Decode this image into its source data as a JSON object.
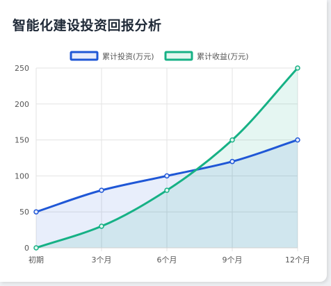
{
  "page": {
    "title": "智能化建设投资回报分析"
  },
  "chart_data": {
    "type": "line",
    "title": "智能化建设投资回报分析",
    "categories": [
      "初期",
      "3个月",
      "6个月",
      "9个月",
      "12个月"
    ],
    "series": [
      {
        "name": "累计投资(万元)",
        "values": [
          50,
          80,
          100,
          120,
          150
        ],
        "color": "#1f57d6",
        "fill": "#e8ecfb",
        "filled": true
      },
      {
        "name": "累计收益(万元)",
        "values": [
          0,
          30,
          80,
          150,
          250
        ],
        "color": "#16b185",
        "fill": "#e3f6ef",
        "filled": true
      }
    ],
    "ylim": [
      0,
      250
    ],
    "yticks": [
      0,
      50,
      100,
      150,
      200,
      250
    ],
    "xlabel": "",
    "ylabel": "",
    "grid": true,
    "legend": "top-center",
    "curve": "smooth"
  }
}
